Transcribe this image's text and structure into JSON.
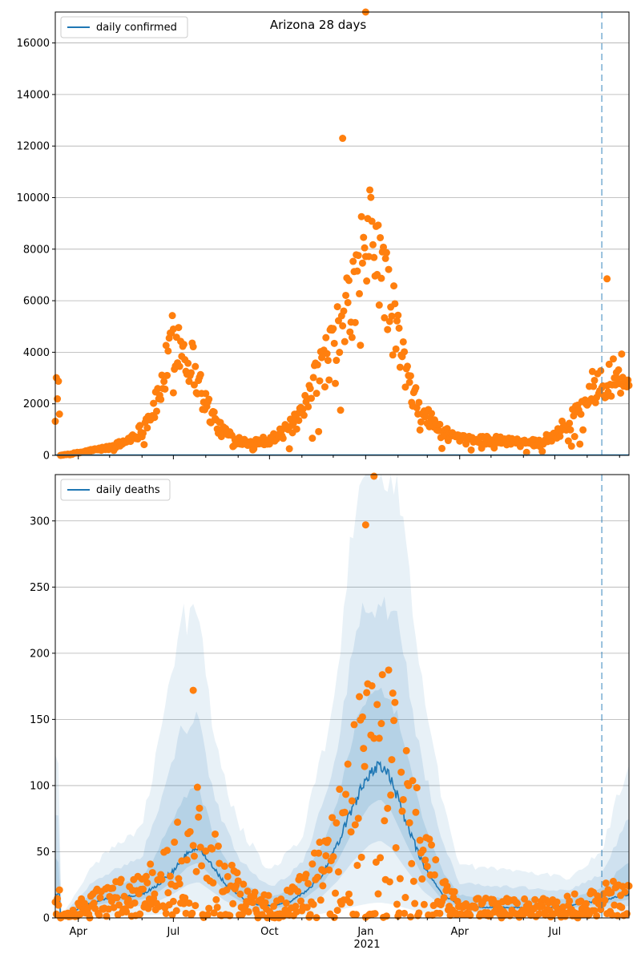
{
  "chart_data": [
    {
      "type": "scatter",
      "title": "Arizona 28 days",
      "legend": {
        "label": "daily confirmed",
        "placement": "top-left"
      },
      "ylim": [
        0,
        17200
      ],
      "yticks": [
        0,
        2000,
        4000,
        6000,
        8000,
        10000,
        12000,
        14000,
        16000
      ],
      "grid": "horizontal",
      "marker_vertical_line_date": "2021-08-15",
      "line_series": {
        "name": "daily confirmed",
        "color": "#1f77b4",
        "note": "near zero on the scale"
      },
      "points_color": "#ff7f0e",
      "peaks": [
        {
          "date": "2020-07-01",
          "value": 4900
        },
        {
          "date": "2020-12-10",
          "value": 12300
        },
        {
          "date": "2021-01-01",
          "value": 17200
        },
        {
          "date": "2021-08-20",
          "value": 6850
        }
      ],
      "key_points": [
        [
          "2020-03-15",
          0
        ],
        [
          "2020-04-01",
          100
        ],
        [
          "2020-04-15",
          200
        ],
        [
          "2020-05-01",
          300
        ],
        [
          "2020-05-15",
          500
        ],
        [
          "2020-06-01",
          1000
        ],
        [
          "2020-06-15",
          2000
        ],
        [
          "2020-06-25",
          3500
        ],
        [
          "2020-07-01",
          4500
        ],
        [
          "2020-07-10",
          4200
        ],
        [
          "2020-07-20",
          3500
        ],
        [
          "2020-08-01",
          2000
        ],
        [
          "2020-08-15",
          1000
        ],
        [
          "2020-09-01",
          600
        ],
        [
          "2020-09-15",
          500
        ],
        [
          "2020-10-01",
          600
        ],
        [
          "2020-10-15",
          900
        ],
        [
          "2020-11-01",
          1500
        ],
        [
          "2020-11-15",
          3000
        ],
        [
          "2020-12-01",
          4300
        ],
        [
          "2020-12-15",
          5500
        ],
        [
          "2021-01-01",
          8000
        ],
        [
          "2021-01-10",
          8500
        ],
        [
          "2021-01-20",
          6500
        ],
        [
          "2021-02-01",
          4500
        ],
        [
          "2021-02-15",
          2200
        ],
        [
          "2021-03-01",
          1500
        ],
        [
          "2021-03-15",
          900
        ],
        [
          "2021-04-01",
          600
        ],
        [
          "2021-05-01",
          600
        ],
        [
          "2021-06-01",
          500
        ],
        [
          "2021-06-15",
          500
        ],
        [
          "2021-07-01",
          800
        ],
        [
          "2021-07-15",
          1300
        ],
        [
          "2021-08-01",
          2300
        ],
        [
          "2021-08-15",
          3000
        ],
        [
          "2021-09-01",
          3300
        ],
        [
          "2021-09-10",
          2800
        ]
      ]
    },
    {
      "type": "scatter",
      "legend": {
        "label": "daily deaths",
        "placement": "top-left"
      },
      "xlabel_year": "2021",
      "ylim": [
        0,
        335
      ],
      "yticks": [
        0,
        50,
        100,
        150,
        200,
        250,
        300
      ],
      "xticks": [
        "Apr",
        "Jul",
        "Oct",
        "Jan",
        "Apr",
        "Jul"
      ],
      "grid": "horizontal",
      "marker_vertical_line_date": "2021-08-15",
      "points_color": "#ff7f0e",
      "line_color": "#1f77b4",
      "series_line": [
        [
          "2020-03-15",
          0
        ],
        [
          "2020-04-01",
          7
        ],
        [
          "2020-04-15",
          12
        ],
        [
          "2020-05-01",
          15
        ],
        [
          "2020-05-15",
          16
        ],
        [
          "2020-06-01",
          18
        ],
        [
          "2020-06-15",
          24
        ],
        [
          "2020-07-01",
          36
        ],
        [
          "2020-07-15",
          50
        ],
        [
          "2020-07-25",
          54
        ],
        [
          "2020-08-05",
          42
        ],
        [
          "2020-08-20",
          25
        ],
        [
          "2020-09-05",
          15
        ],
        [
          "2020-09-20",
          10
        ],
        [
          "2020-10-05",
          9
        ],
        [
          "2020-10-20",
          12
        ],
        [
          "2020-11-05",
          20
        ],
        [
          "2020-11-20",
          32
        ],
        [
          "2020-12-05",
          55
        ],
        [
          "2020-12-20",
          85
        ],
        [
          "2021-01-05",
          110
        ],
        [
          "2021-01-15",
          116
        ],
        [
          "2021-01-25",
          105
        ],
        [
          "2021-02-10",
          70
        ],
        [
          "2021-02-25",
          40
        ],
        [
          "2021-03-15",
          18
        ],
        [
          "2021-04-01",
          10
        ],
        [
          "2021-04-15",
          8
        ],
        [
          "2021-05-01",
          8
        ],
        [
          "2021-06-01",
          8
        ],
        [
          "2021-07-01",
          8
        ],
        [
          "2021-07-20",
          10
        ],
        [
          "2021-08-05",
          12
        ],
        [
          "2021-08-20",
          14
        ],
        [
          "2021-09-05",
          17
        ],
        [
          "2021-09-10",
          18
        ]
      ],
      "band_outer": [
        [
          "2020-03-15",
          0
        ],
        [
          "2020-04-15",
          40
        ],
        [
          "2020-06-01",
          70
        ],
        [
          "2020-07-10",
          225
        ],
        [
          "2020-07-25",
          230
        ],
        [
          "2020-08-10",
          130
        ],
        [
          "2020-09-01",
          70
        ],
        [
          "2020-10-01",
          35
        ],
        [
          "2020-11-01",
          60
        ],
        [
          "2020-12-01",
          160
        ],
        [
          "2020-12-25",
          335
        ],
        [
          "2021-02-01",
          335
        ],
        [
          "2021-02-20",
          200
        ],
        [
          "2021-03-15",
          90
        ],
        [
          "2021-04-01",
          40
        ],
        [
          "2021-06-01",
          35
        ],
        [
          "2021-07-15",
          30
        ],
        [
          "2021-08-15",
          50
        ],
        [
          "2021-09-10",
          120
        ]
      ],
      "peaks": [
        {
          "date": "2020-07-20",
          "value": 172
        },
        {
          "date": "2021-01-01",
          "value": 297
        },
        {
          "date": "2021-01-09",
          "value": 335
        }
      ]
    }
  ],
  "icons": {
    "legend-line": "line-swatch",
    "scatter-point": "circle"
  }
}
